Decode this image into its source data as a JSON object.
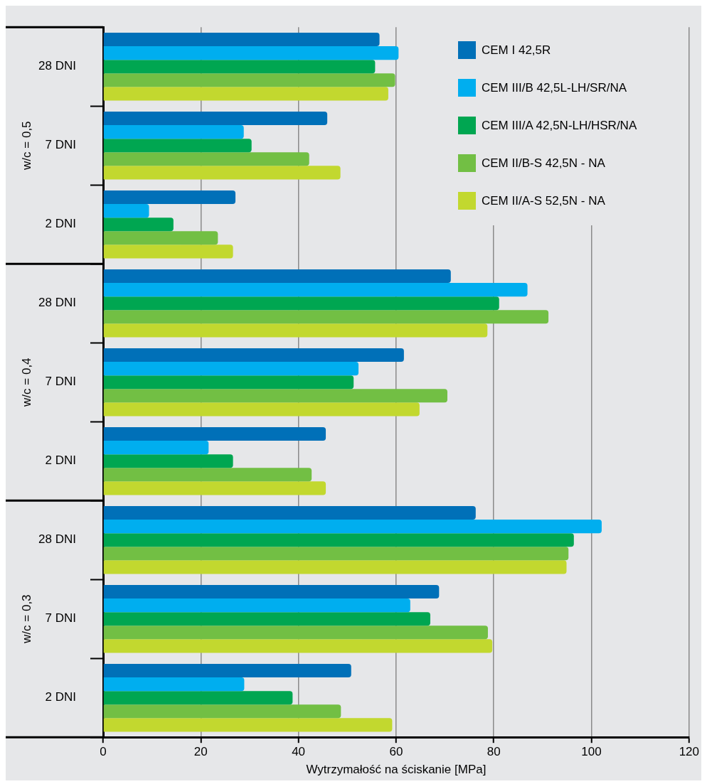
{
  "chart_data": {
    "type": "bar",
    "orientation": "horizontal",
    "xlabel": "Wytrzymałość na ściskanie [MPa]",
    "categories": [
      "28 DNI",
      "7 DNI",
      "2 DNI",
      "28 DNI",
      "7 DNI",
      "2 DNI",
      "28 DNI",
      "7 DNI",
      "2 DNI"
    ],
    "annotations": [
      "w/c = 0,5",
      "w/c = 0,4",
      "w/c = 0,3"
    ],
    "series": [
      {
        "name": "CEM I 42,5R",
        "color": "#0070b8",
        "values": [
          56.6,
          45.9,
          27.1,
          71.2,
          61.6,
          45.6,
          76.3,
          68.8,
          50.8
        ]
      },
      {
        "name": "CEM III/B 42,5L-LH/SR/NA",
        "color": "#00aeef",
        "values": [
          60.5,
          28.8,
          9.4,
          86.9,
          52.3,
          21.6,
          102.1,
          62.9,
          28.9
        ]
      },
      {
        "name": "CEM III/A 42,5N-LH/HSR/NA",
        "color": "#00a651",
        "values": [
          55.7,
          30.4,
          14.4,
          81.1,
          51.3,
          26.6,
          96.4,
          67.0,
          38.8
        ]
      },
      {
        "name": "CEM II/B-S 42,5N  - NA",
        "color": "#72bf44",
        "values": [
          59.8,
          42.2,
          23.5,
          91.2,
          70.5,
          42.7,
          95.3,
          78.8,
          48.7
        ]
      },
      {
        "name": "CEM II/A-S 52,5N  - NA",
        "color": "#c2d82f",
        "values": [
          58.4,
          48.6,
          26.6,
          78.7,
          64.8,
          45.6,
          94.9,
          79.7,
          59.2
        ]
      }
    ],
    "xlim": [
      0,
      120
    ],
    "xticks": [
      0,
      20,
      40,
      60,
      80,
      100,
      120
    ],
    "grid": "x",
    "legend": "top right"
  }
}
